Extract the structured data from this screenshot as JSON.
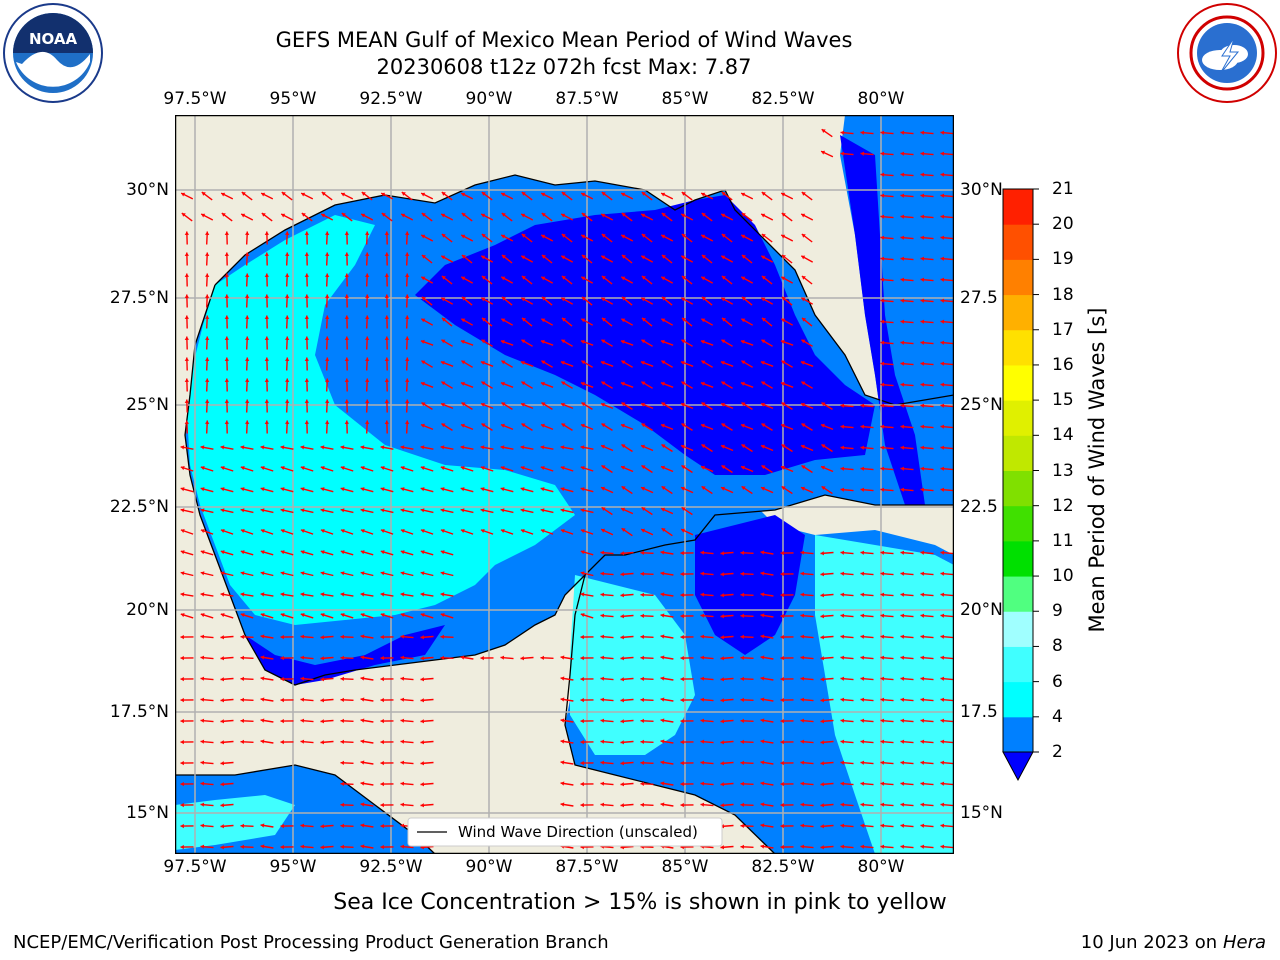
{
  "title": {
    "line1": "GEFS MEAN Gulf of Mexico Mean Period of Wind Waves",
    "line2": "20230608 t12z 072h fcst   Max: 7.87"
  },
  "logos": {
    "left": {
      "icon": "noaa-logo",
      "text": "NOAA"
    },
    "right": {
      "icon": "nws-logo"
    }
  },
  "map": {
    "lon_ticks": [
      "97.5°W",
      "95°W",
      "92.5°W",
      "90°W",
      "87.5°W",
      "85°W",
      "82.5°W",
      "80°W"
    ],
    "lat_ticks_left": [
      "30°N",
      "27.5°N",
      "25°N",
      "22.5°N",
      "20°N",
      "17.5°N",
      "15°N"
    ],
    "lat_ticks_right": [
      "30°N",
      "27.5",
      "25°N",
      "22.5",
      "20°N",
      "17.5",
      "15°N"
    ],
    "legend": "Wind Wave Direction (unscaled)",
    "colors": {
      "land": "#efedde",
      "grid": "#b0b0b0",
      "arrows": "#ff0000",
      "coast": "#000000"
    }
  },
  "colorbar": {
    "title": "Mean Period of Wind Waves [s]",
    "levels": [
      "2",
      "4",
      "6",
      "8",
      "9",
      "10",
      "11",
      "12",
      "13",
      "14",
      "15",
      "16",
      "17",
      "18",
      "19",
      "20",
      "21"
    ],
    "colors": [
      "#0080ff",
      "#00ffff",
      "#40ffff",
      "#a0ffff",
      "#50ff80",
      "#00e000",
      "#40e000",
      "#80e000",
      "#c0e800",
      "#e0f000",
      "#ffff00",
      "#ffe000",
      "#ffb000",
      "#ff8000",
      "#ff5000",
      "#ff2000",
      "#ff0000"
    ],
    "extend_color": "#0000ff"
  },
  "caption": "Sea Ice Concentration > 15% is shown in pink to yellow",
  "footer": {
    "left": "NCEP/EMC/Verification Post Processing Product Generation Branch",
    "right_date": "10 Jun 2023 on",
    "right_host": "Hera"
  }
}
